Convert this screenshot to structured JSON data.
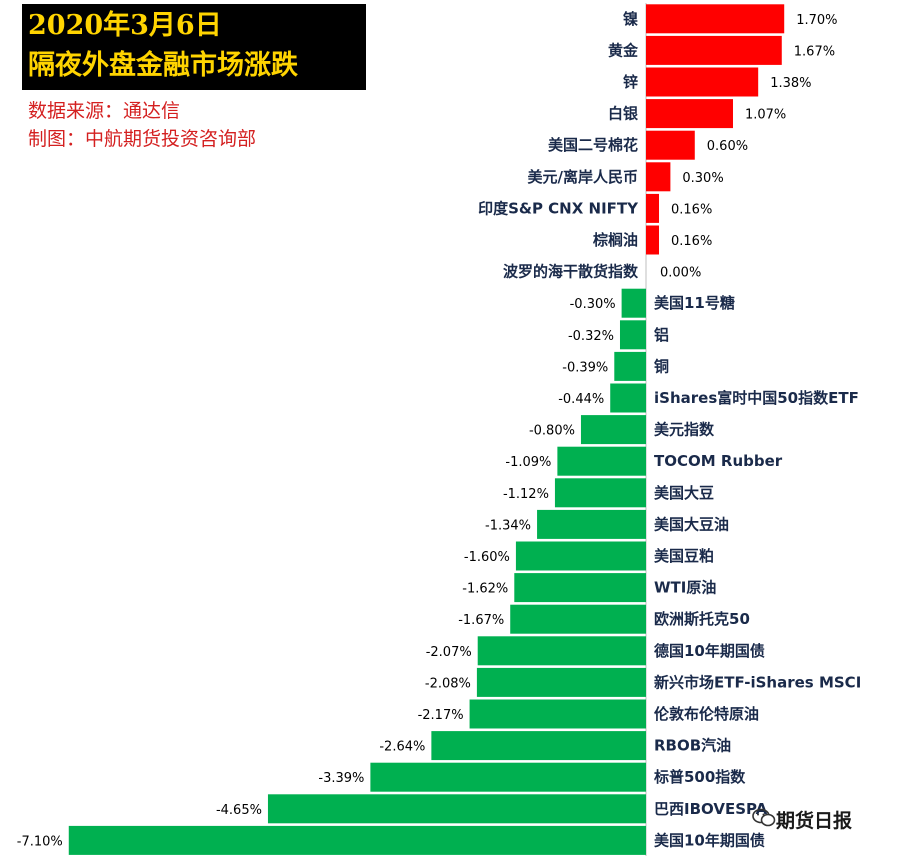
{
  "header": {
    "date_line": "2020年3月6日",
    "title_line": "隔夜外盘金融市场涨跌",
    "source": "数据来源：通达信",
    "credit": "制图：中航期货投资咨询部"
  },
  "watermark": {
    "text": "期货日报",
    "icon": "wechat-icon"
  },
  "colors": {
    "positive": "#ff0000",
    "negative": "#00b050",
    "title_bg": "#000000",
    "title_text": "#ffd400",
    "credit_text": "#d42020"
  },
  "chart_data": {
    "type": "bar",
    "orientation": "horizontal",
    "unit": "%",
    "categories": [
      "镍",
      "黄金",
      "锌",
      "白银",
      "美国二号棉花",
      "美元/离岸人民币",
      "印度S&P CNX NIFTY",
      "棕榈油",
      "波罗的海干散货指数",
      "美国11号糖",
      "铝",
      "铜",
      "iShares富时中国50指数ETF",
      "美元指数",
      "TOCOM Rubber",
      "美国大豆",
      "美国大豆油",
      "美国豆粕",
      "WTI原油",
      "欧洲斯托克50",
      "德国10年期国债",
      "新兴市场ETF-iShares MSCI",
      "伦敦布伦特原油",
      "RBOB汽油",
      "标普500指数",
      "巴西IBOVESPA",
      "美国10年期国债"
    ],
    "values": [
      1.7,
      1.67,
      1.38,
      1.07,
      0.6,
      0.3,
      0.16,
      0.16,
      0.0,
      -0.3,
      -0.32,
      -0.39,
      -0.44,
      -0.8,
      -1.09,
      -1.12,
      -1.34,
      -1.6,
      -1.62,
      -1.67,
      -2.07,
      -2.08,
      -2.17,
      -2.64,
      -3.39,
      -4.65,
      -7.1
    ],
    "value_labels": [
      "1.70%",
      "1.67%",
      "1.38%",
      "1.07%",
      "0.60%",
      "0.30%",
      "0.16%",
      "0.16%",
      "0.00%",
      "-0.30%",
      "-0.32%",
      "-0.39%",
      "-0.44%",
      "-0.80%",
      "-1.09%",
      "-1.12%",
      "-1.34%",
      "-1.60%",
      "-1.62%",
      "-1.67%",
      "-2.07%",
      "-2.08%",
      "-2.17%",
      "-2.64%",
      "-3.39%",
      "-4.65%",
      "-7.10%"
    ],
    "grid": false,
    "legend": "none"
  }
}
